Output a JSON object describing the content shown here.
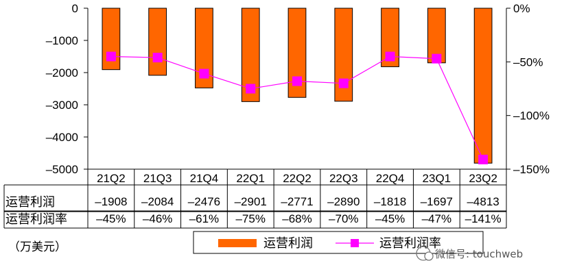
{
  "chart_data": {
    "type": "bar",
    "categories": [
      "21Q2",
      "21Q3",
      "21Q4",
      "22Q1",
      "22Q2",
      "22Q3",
      "22Q4",
      "23Q1",
      "23Q2"
    ],
    "series": [
      {
        "name": "运营利润",
        "type": "bar",
        "values": [
          -1908,
          -2084,
          -2476,
          -2901,
          -2771,
          -2890,
          -1818,
          -1697,
          -4813
        ],
        "color": "#FF6600"
      },
      {
        "name": "运营利润率",
        "type": "line",
        "axis": "right",
        "values": [
          -45,
          -46,
          -61,
          -75,
          -68,
          -70,
          -45,
          -47,
          -141
        ],
        "color": "#FF00FF"
      }
    ],
    "table_rows": [
      {
        "label": "运营利润",
        "cells": [
          "-1908",
          "-2084",
          "-2476",
          "-2901",
          "-2771",
          "-2890",
          "-1818",
          "-1697",
          "-4813"
        ]
      },
      {
        "label": "运营利润率",
        "cells": [
          "-45%",
          "-46%",
          "-61%",
          "-75%",
          "-68%",
          "-70%",
          "-45%",
          "-47%",
          "-141%"
        ]
      }
    ],
    "left_axis": {
      "ylim": [
        -5000,
        0
      ],
      "ticks": [
        "0",
        "-1000",
        "-2000",
        "-3000",
        "-4000",
        "-5000"
      ]
    },
    "right_axis": {
      "ylim": [
        -150,
        0
      ],
      "ticks": [
        "0%",
        "-50%",
        "-100%",
        "-150%"
      ]
    },
    "unit_label": "（万美元）",
    "legend": {
      "placement": "bottom",
      "items": [
        "运营利润",
        "运营利润率"
      ]
    },
    "grid": false,
    "watermark": "微信号: touchweb"
  }
}
